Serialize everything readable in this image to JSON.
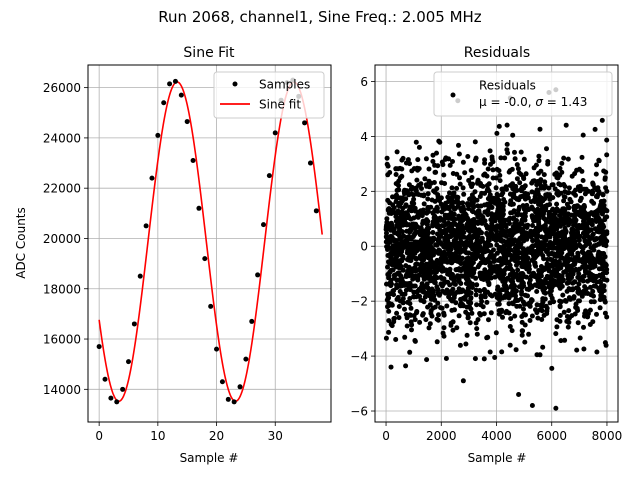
{
  "figure": {
    "suptitle": "Run 2068, channel1, Sine Freq.: 2.005 MHz"
  },
  "chart_data": [
    {
      "type": "line",
      "title": "Sine Fit",
      "xlabel": "Sample #",
      "ylabel": "ADC Counts",
      "xlim": [
        -1.9,
        39.5
      ],
      "ylim": [
        12700,
        26900
      ],
      "xticks": [
        0,
        10,
        20,
        30
      ],
      "yticks": [
        14000,
        16000,
        18000,
        20000,
        22000,
        24000,
        26000
      ],
      "grid": true,
      "legend_position": "upper-right",
      "series": [
        {
          "name": "Samples",
          "style": "markers",
          "color": "#000000",
          "x": [
            0,
            1,
            2,
            3,
            4,
            5,
            6,
            7,
            8,
            9,
            10,
            11,
            12,
            13,
            14,
            15,
            16,
            17,
            18,
            19,
            20,
            21,
            22,
            23,
            24,
            25,
            26,
            27,
            28,
            29,
            30,
            31,
            32,
            33,
            34,
            35,
            36,
            37
          ],
          "y": [
            15700,
            14400,
            13650,
            13500,
            14000,
            15100,
            16600,
            18500,
            20500,
            22400,
            24100,
            25400,
            26150,
            26250,
            25700,
            24650,
            23100,
            21200,
            19200,
            17300,
            15600,
            14300,
            13600,
            13500,
            14100,
            15200,
            16700,
            18550,
            20550,
            22500,
            24200,
            25500,
            26200,
            26300,
            25650,
            24600,
            23000,
            21100
          ]
        },
        {
          "name": "Sine fit",
          "style": "line",
          "color": "#ff0000",
          "fit": {
            "offset": 19875,
            "amplitude": 6350,
            "period": 19.88,
            "phase_sample": 3.35
          },
          "x_range": [
            0,
            38
          ]
        }
      ]
    },
    {
      "type": "scatter",
      "title": "Residuals",
      "xlabel": "Sample #",
      "ylabel": "",
      "xlim": [
        -400,
        8400
      ],
      "ylim": [
        -6.4,
        6.6
      ],
      "xticks": [
        0,
        2000,
        4000,
        6000,
        8000
      ],
      "yticks": [
        -6,
        -4,
        -2,
        0,
        2,
        4,
        6
      ],
      "grid": true,
      "legend_position": "upper-right",
      "series": [
        {
          "name": "Residuals",
          "style": "markers",
          "color": "#000000",
          "mean": -0.0,
          "sigma": 1.43,
          "n_points": 8000,
          "notable_points": [
            {
              "x": 2600,
              "y": 5.3
            },
            {
              "x": 6150,
              "y": 5.7
            },
            {
              "x": 5900,
              "y": 5.6
            },
            {
              "x": 4500,
              "y": 5.4
            },
            {
              "x": 5300,
              "y": -5.8
            },
            {
              "x": 6150,
              "y": -5.9
            },
            {
              "x": 2800,
              "y": -4.9
            },
            {
              "x": 180,
              "y": -4.4
            },
            {
              "x": 4800,
              "y": -5.4
            }
          ]
        }
      ],
      "legend_text": {
        "line1": "Residuals",
        "line2_prefix": "μ = -0.0, ",
        "sigma_symbol": "σ",
        "line2_suffix": " = 1.43"
      }
    }
  ]
}
